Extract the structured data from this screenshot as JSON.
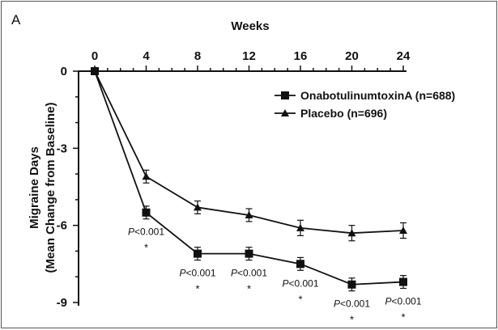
{
  "panel_label": "A",
  "chart_data": {
    "type": "line",
    "title": "",
    "xlabel": "Weeks",
    "ylabel_line1": "Migraine Days",
    "ylabel_line2": "(Mean Change from Baseline)",
    "x": [
      0,
      4,
      8,
      12,
      16,
      20,
      24
    ],
    "x_ticks": [
      "0",
      "4",
      "8",
      "12",
      "16",
      "20",
      "24"
    ],
    "xlim": [
      0,
      24
    ],
    "x_axis_position": "top",
    "y_ticks": [
      "0",
      "-3",
      "-6",
      "-9"
    ],
    "y_tick_values": [
      0,
      -3,
      -6,
      -9
    ],
    "ylim": [
      -9,
      0
    ],
    "grid": false,
    "legend_position": "top-right",
    "series": [
      {
        "name": "OnabotulinumtoxinA (n=688)",
        "marker": "square",
        "values": [
          0,
          -5.5,
          -7.1,
          -7.1,
          -7.5,
          -8.3,
          -8.2
        ],
        "error": [
          0,
          0.25,
          0.25,
          0.25,
          0.25,
          0.25,
          0.25
        ]
      },
      {
        "name": "Placebo (n=696)",
        "marker": "triangle",
        "values": [
          0,
          -4.1,
          -5.3,
          -5.6,
          -6.1,
          -6.3,
          -6.2
        ],
        "error": [
          0,
          0.25,
          0.25,
          0.25,
          0.3,
          0.3,
          0.3
        ]
      }
    ],
    "annotations": [
      {
        "x": 4,
        "p_prefix": "P",
        "p_rest": "<0.001",
        "star": "*"
      },
      {
        "x": 8,
        "p_prefix": "P",
        "p_rest": "<0.001",
        "star": "*"
      },
      {
        "x": 12,
        "p_prefix": "P",
        "p_rest": "<0.001",
        "star": "*"
      },
      {
        "x": 16,
        "p_prefix": "P",
        "p_rest": "<0.001",
        "star": "*"
      },
      {
        "x": 20,
        "p_prefix": "P",
        "p_rest": "<0.001",
        "star": "*"
      },
      {
        "x": 24,
        "p_prefix": "P",
        "p_rest": "<0.001",
        "star": "*"
      }
    ]
  }
}
